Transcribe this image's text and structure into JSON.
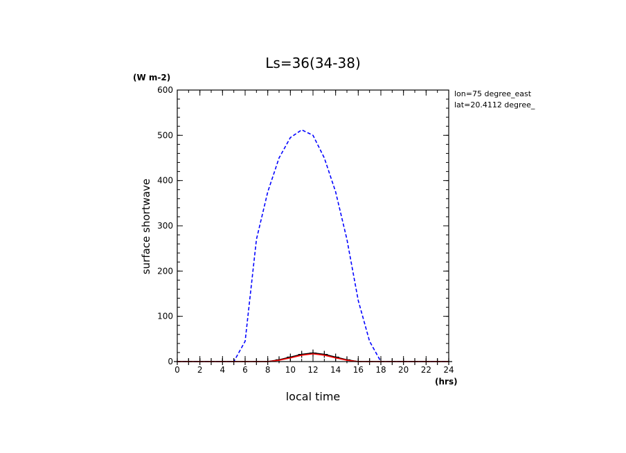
{
  "chart_data": {
    "type": "line",
    "title": "Ls=36(34-38)",
    "xlabel": "local time",
    "xunit": "(hrs)",
    "ylabel": "surface shortwave",
    "yunit": "(W m-2)",
    "annotations": [
      "lon=75 degree_east",
      "lat=20.4112 degree_"
    ],
    "xlim": [
      0,
      24
    ],
    "ylim": [
      0,
      600
    ],
    "xticks": [
      0,
      2,
      4,
      6,
      8,
      10,
      12,
      14,
      16,
      18,
      20,
      22,
      24
    ],
    "yticks": [
      0,
      100,
      200,
      300,
      400,
      500,
      600
    ],
    "grid": false,
    "series": [
      {
        "style": "dashed",
        "color": "#0000ff",
        "x": [
          0,
          1,
          2,
          3,
          4,
          5,
          6,
          7,
          8,
          9,
          10,
          11,
          12,
          13,
          14,
          15,
          16,
          17,
          18,
          19,
          20,
          21,
          22,
          23,
          24
        ],
        "y": [
          0,
          0,
          0,
          0,
          0,
          0,
          45,
          270,
          375,
          450,
          495,
          512,
          500,
          450,
          375,
          270,
          135,
          45,
          0,
          0,
          0,
          0,
          0,
          0,
          0
        ]
      },
      {
        "style": "solid-plus",
        "color": "#000000",
        "x": [
          0,
          1,
          2,
          3,
          4,
          5,
          6,
          7,
          8,
          9,
          10,
          11,
          12,
          13,
          14,
          15,
          16,
          17,
          18,
          19,
          20,
          21,
          22,
          23,
          24
        ],
        "y": [
          0,
          0,
          0,
          0,
          0,
          0,
          0,
          0,
          0,
          4,
          10,
          16,
          19,
          16,
          10,
          4,
          0,
          0,
          0,
          0,
          0,
          0,
          0,
          0,
          0
        ]
      },
      {
        "style": "solid",
        "color": "#ff0000",
        "x": [
          0,
          1,
          2,
          3,
          4,
          5,
          6,
          7,
          8,
          9,
          10,
          11,
          12,
          13,
          14,
          15,
          16,
          17,
          18,
          19,
          20,
          21,
          22,
          23,
          24
        ],
        "y": [
          0,
          0,
          0,
          0,
          0,
          0,
          0,
          0,
          0,
          3,
          8,
          14,
          17,
          14,
          8,
          3,
          0,
          0,
          0,
          0,
          0,
          0,
          0,
          0,
          0
        ]
      }
    ]
  }
}
